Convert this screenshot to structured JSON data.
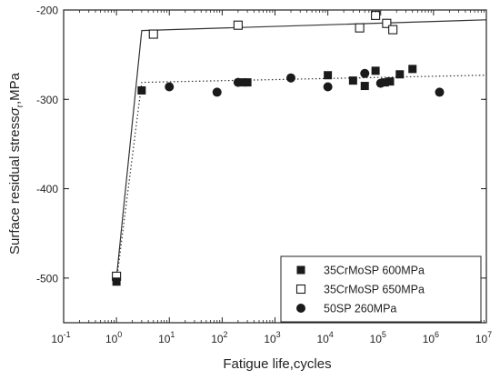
{
  "chart_data": {
    "type": "scatter",
    "xlabel": "Fatigue life,cycles",
    "ylabel_main": "Surface residual stress",
    "ylabel_sym": "σ",
    "ylabel_sub": "r",
    "ylabel_unit": ",MPa",
    "x_scale": "log",
    "xlim": [
      0.1,
      10000000
    ],
    "ylim": [
      -550,
      -200
    ],
    "x_ticks": [
      {
        "value": 0.1,
        "base": "10",
        "exp": "-1"
      },
      {
        "value": 1,
        "base": "10",
        "exp": "0"
      },
      {
        "value": 10,
        "base": "10",
        "exp": "1"
      },
      {
        "value": 100,
        "base": "10",
        "exp": "2"
      },
      {
        "value": 1000,
        "base": "10",
        "exp": "3"
      },
      {
        "value": 10000,
        "base": "10",
        "exp": "4"
      },
      {
        "value": 100000,
        "base": "10",
        "exp": "5"
      },
      {
        "value": 1000000,
        "base": "10",
        "exp": "6"
      },
      {
        "value": 10000000,
        "base": "10",
        "exp": "7"
      }
    ],
    "y_ticks": [
      {
        "value": -200,
        "label": "-200"
      },
      {
        "value": -300,
        "label": "-300"
      },
      {
        "value": -400,
        "label": "-400"
      },
      {
        "value": -500,
        "label": "-500"
      }
    ],
    "series": [
      {
        "name": "35CrMoSP 600MPa",
        "marker": "filled-square",
        "points": [
          [
            1,
            -504
          ],
          [
            3,
            -290
          ],
          [
            250,
            -281
          ],
          [
            300,
            -281
          ],
          [
            10000,
            -273
          ],
          [
            30000,
            -279
          ],
          [
            50000,
            -285
          ],
          [
            80000,
            -268
          ],
          [
            120000,
            -281
          ],
          [
            150000,
            -280
          ],
          [
            230000,
            -272
          ],
          [
            400000,
            -266
          ]
        ]
      },
      {
        "name": "35CrMoSP 650MPa",
        "marker": "open-square",
        "points": [
          [
            1,
            -498
          ],
          [
            5,
            -227
          ],
          [
            200,
            -217
          ],
          [
            40000,
            -220
          ],
          [
            80000,
            -206
          ],
          [
            130000,
            -215
          ],
          [
            170000,
            -222
          ]
        ]
      },
      {
        "name": "50SP 260MPa",
        "marker": "filled-circle",
        "points": [
          [
            10,
            -286
          ],
          [
            80,
            -292
          ],
          [
            200,
            -281
          ],
          [
            2000,
            -276
          ],
          [
            10000,
            -286
          ],
          [
            50000,
            -271
          ],
          [
            100000,
            -282
          ],
          [
            1300000,
            -292
          ]
        ]
      }
    ],
    "trend_lines": [
      {
        "style": "solid",
        "points": [
          [
            1,
            -500
          ],
          [
            3,
            -223
          ],
          [
            10000000,
            -211
          ]
        ]
      },
      {
        "style": "dotted",
        "points": [
          [
            1,
            -504
          ],
          [
            3,
            -281
          ],
          [
            10000000,
            -273
          ]
        ]
      }
    ],
    "grid": false,
    "legend_position": "bottom-right"
  }
}
